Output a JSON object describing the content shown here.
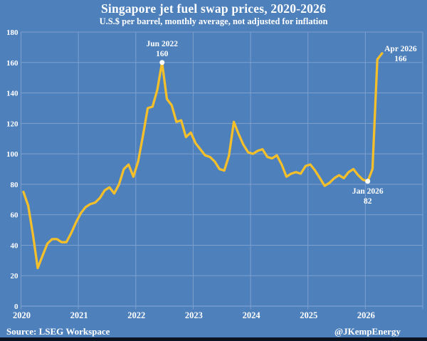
{
  "header": {
    "title": "Singapore jet fuel swap prices, 2020-2026",
    "subtitle": "U.S.$ per barrel, monthly average, not adjusted for inflation"
  },
  "footer": {
    "source": "Source: LSEG Workspace",
    "handle": "@JKempEnergy"
  },
  "chart_data": {
    "type": "line",
    "title": "Singapore jet fuel swap prices, 2020-2026",
    "subtitle": "U.S.$ per barrel, monthly average, not adjusted for inflation",
    "x_start_month": "2020-01",
    "x_end_month": "2026-04",
    "xlim_years": [
      2020,
      2027
    ],
    "x_tick_labels": [
      "2020",
      "2021",
      "2022",
      "2023",
      "2024",
      "2025",
      "2026"
    ],
    "ylim": [
      0,
      180
    ],
    "y_ticks": [
      0,
      20,
      40,
      60,
      80,
      100,
      120,
      140,
      160,
      180
    ],
    "grid": true,
    "legend": "none",
    "series": [
      {
        "name": "Singapore jet fuel swap price, U.S.$ per barrel, monthly average",
        "values": [
          75,
          66,
          47,
          25,
          33,
          41,
          44,
          44,
          42,
          42,
          48,
          55,
          61,
          65,
          67,
          68,
          71,
          76,
          78,
          74,
          80,
          90,
          93,
          85,
          95,
          112,
          130,
          131,
          142,
          160,
          136,
          132,
          121,
          122,
          111,
          114,
          107,
          103,
          99,
          98,
          95,
          90,
          89,
          99,
          121,
          113,
          106,
          101,
          100,
          102,
          103,
          98,
          97,
          99,
          93,
          85,
          87,
          88,
          87,
          92,
          93,
          89,
          84,
          79,
          81,
          84,
          86,
          84,
          88,
          90,
          86,
          83,
          82,
          90,
          162,
          166
        ]
      }
    ],
    "annotations": [
      {
        "line1": "Jun 2022",
        "line2": "160",
        "month_index": 29,
        "value": 160,
        "dot": true,
        "dx": 0,
        "dy1": -22.8,
        "dy2": -8.8
      },
      {
        "line1": "Jan 2026",
        "line2": "82",
        "month_index": 72,
        "value": 82,
        "dot": true,
        "dx": 0,
        "dy1": 17.5,
        "dy2": 31.5
      },
      {
        "line1": "Apr 2026",
        "line2": "166",
        "month_index": 75,
        "value": 166,
        "dot": false,
        "dx": 26,
        "dy1": -3,
        "dy2": 11
      }
    ],
    "colors": {
      "background": "#4E80BC",
      "line": "#F3BF2B",
      "gridline": "#7EA0CE",
      "text": "#FFFFFF",
      "annotation_dot": "#FFFFFF",
      "bottom_bar": "#0A131F"
    }
  }
}
